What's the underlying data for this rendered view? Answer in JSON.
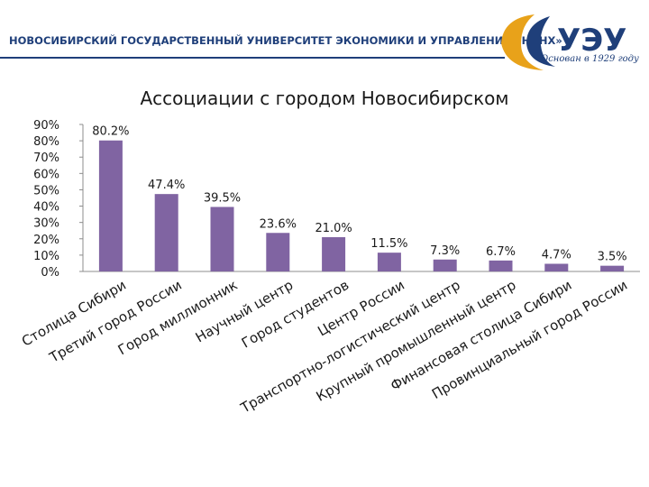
{
  "header": {
    "university": "НОВОСИБИРСКИЙ ГОСУДАРСТВЕННЫЙ УНИВЕРСИТЕТ ЭКОНОМИКИ И УПРАВЛЕНИЯ «НИНХ»",
    "logo_tagline": "Основан в 1929 году",
    "colors": {
      "brand_blue": "#1f3f7a",
      "logo_gold": "#e8a21a"
    }
  },
  "chart_data": {
    "type": "bar",
    "title": "Ассоциации с городом Новосибирском",
    "categories": [
      "Столица Сибири",
      "Третий город России",
      "Город миллионник",
      "Научный центр",
      "Город студентов",
      "Центр России",
      "Транспортно-логистический центр",
      "Крупный промышленный центр",
      "Финансовая столица Сибири",
      "Провинциальный город России"
    ],
    "values": [
      80.2,
      47.4,
      39.5,
      23.6,
      21.0,
      11.5,
      7.3,
      6.7,
      4.7,
      3.5
    ],
    "data_labels": [
      "80.2%",
      "47.4%",
      "39.5%",
      "23.6%",
      "21.0%",
      "11.5%",
      "7.3%",
      "6.7%",
      "4.7%",
      "3.5%"
    ],
    "yticks": [
      "0%",
      "10%",
      "20%",
      "30%",
      "40%",
      "50%",
      "60%",
      "70%",
      "80%",
      "90%"
    ],
    "ylim": [
      0,
      90
    ],
    "grid": false,
    "legend": "none",
    "bar_color": "#8064a2"
  }
}
